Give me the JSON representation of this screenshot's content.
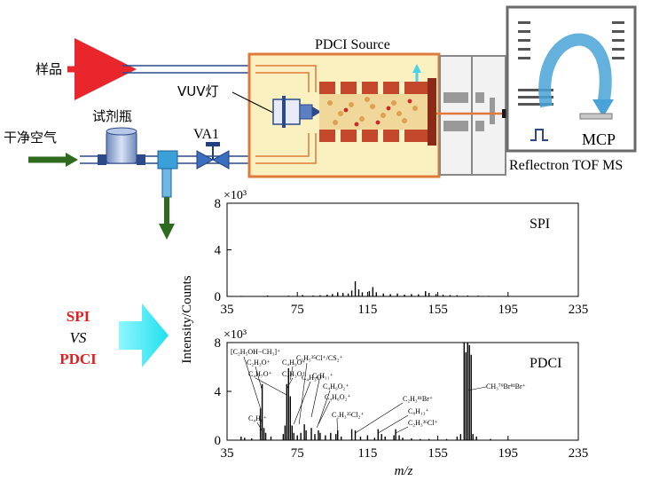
{
  "diagram": {
    "source_title": "PDCI Source",
    "labels": {
      "sample": "样品",
      "dry_air": "干净空气",
      "reagent_bottle": "试剂瓶",
      "vuv_lamp": "VUV灯",
      "valve": "VA1",
      "mcp": "MCP",
      "tof": "Reflectron TOF MS"
    },
    "comparison": {
      "line1": "SPI",
      "line2": "VS",
      "line3": "PDCI"
    },
    "colors": {
      "sample_arrow": "#e8262b",
      "air_arrow": "#2e6b1f",
      "source_fill": "#fbf0c0",
      "source_border": "#e07a3a",
      "ion_path": "#4aa3d8",
      "big_arrow": "#28e6f0",
      "comparison_red": "#e02020"
    }
  },
  "chart_data": [
    {
      "type": "bar",
      "panel_label": "SPI",
      "exponent_label": "×10³",
      "ylabel": "Intensity/Counts",
      "xlim": [
        35,
        235
      ],
      "ylim": [
        0,
        8
      ],
      "x_ticks": [
        35,
        75,
        115,
        155,
        195,
        235
      ],
      "y_ticks": [
        0,
        4,
        8
      ],
      "peaks": [
        {
          "x": 43,
          "y": 0.05
        },
        {
          "x": 58,
          "y": 0.08
        },
        {
          "x": 70,
          "y": 0.06
        },
        {
          "x": 78,
          "y": 0.12
        },
        {
          "x": 84,
          "y": 0.08
        },
        {
          "x": 88,
          "y": 0.1
        },
        {
          "x": 92,
          "y": 0.15
        },
        {
          "x": 95,
          "y": 0.2
        },
        {
          "x": 98,
          "y": 0.35
        },
        {
          "x": 101,
          "y": 0.3
        },
        {
          "x": 104,
          "y": 0.25
        },
        {
          "x": 106,
          "y": 0.5
        },
        {
          "x": 108,
          "y": 1.3
        },
        {
          "x": 110,
          "y": 0.6
        },
        {
          "x": 112,
          "y": 0.35
        },
        {
          "x": 116,
          "y": 0.45
        },
        {
          "x": 118,
          "y": 0.8
        },
        {
          "x": 120,
          "y": 0.35
        },
        {
          "x": 124,
          "y": 0.25
        },
        {
          "x": 128,
          "y": 0.2
        },
        {
          "x": 132,
          "y": 0.25
        },
        {
          "x": 136,
          "y": 0.15
        },
        {
          "x": 140,
          "y": 0.2
        },
        {
          "x": 144,
          "y": 0.18
        },
        {
          "x": 148,
          "y": 0.45
        },
        {
          "x": 150,
          "y": 0.3
        },
        {
          "x": 154,
          "y": 0.2
        },
        {
          "x": 158,
          "y": 0.15
        },
        {
          "x": 162,
          "y": 0.12
        },
        {
          "x": 166,
          "y": 0.1
        },
        {
          "x": 172,
          "y": 0.08
        },
        {
          "x": 178,
          "y": 0.06
        },
        {
          "x": 184,
          "y": 0.05
        }
      ]
    },
    {
      "type": "bar",
      "panel_label": "PDCI",
      "exponent_label": "×10³",
      "xlabel": "m/z",
      "xlim": [
        35,
        235
      ],
      "ylim": [
        0,
        8
      ],
      "x_ticks": [
        35,
        75,
        115,
        155,
        195,
        235
      ],
      "y_ticks": [
        0,
        4,
        8
      ],
      "peaks": [
        {
          "x": 43,
          "y": 0.3
        },
        {
          "x": 45,
          "y": 0.2
        },
        {
          "x": 49,
          "y": 0.15
        },
        {
          "x": 54,
          "y": 2.6
        },
        {
          "x": 55,
          "y": 4.6
        },
        {
          "x": 56,
          "y": 1.0
        },
        {
          "x": 57,
          "y": 0.6
        },
        {
          "x": 60,
          "y": 0.3
        },
        {
          "x": 67,
          "y": 0.5
        },
        {
          "x": 68,
          "y": 1.2
        },
        {
          "x": 69,
          "y": 4.6
        },
        {
          "x": 70,
          "y": 5.9
        },
        {
          "x": 71,
          "y": 3.6
        },
        {
          "x": 72,
          "y": 1.2
        },
        {
          "x": 73,
          "y": 0.6
        },
        {
          "x": 75,
          "y": 0.4
        },
        {
          "x": 77,
          "y": 0.6
        },
        {
          "x": 79,
          "y": 1.3
        },
        {
          "x": 80,
          "y": 0.8
        },
        {
          "x": 83,
          "y": 1.0
        },
        {
          "x": 85,
          "y": 0.5
        },
        {
          "x": 87,
          "y": 0.8
        },
        {
          "x": 88,
          "y": 0.6
        },
        {
          "x": 91,
          "y": 0.4
        },
        {
          "x": 94,
          "y": 0.6
        },
        {
          "x": 97,
          "y": 0.5
        },
        {
          "x": 98,
          "y": 0.8
        },
        {
          "x": 100,
          "y": 0.3
        },
        {
          "x": 106,
          "y": 0.9
        },
        {
          "x": 108,
          "y": 0.8
        },
        {
          "x": 111,
          "y": 0.3
        },
        {
          "x": 115,
          "y": 0.4
        },
        {
          "x": 119,
          "y": 0.2
        },
        {
          "x": 121,
          "y": 0.9
        },
        {
          "x": 123,
          "y": 0.5
        },
        {
          "x": 125,
          "y": 0.3
        },
        {
          "x": 130,
          "y": 0.4
        },
        {
          "x": 131,
          "y": 0.9
        },
        {
          "x": 133,
          "y": 0.4
        },
        {
          "x": 135,
          "y": 0.2
        },
        {
          "x": 140,
          "y": 0.15
        },
        {
          "x": 145,
          "y": 0.1
        },
        {
          "x": 150,
          "y": 0.1
        },
        {
          "x": 160,
          "y": 0.1
        },
        {
          "x": 166,
          "y": 0.3
        },
        {
          "x": 168,
          "y": 0.5
        },
        {
          "x": 170,
          "y": 8.0
        },
        {
          "x": 171,
          "y": 7.2
        },
        {
          "x": 172,
          "y": 8.0
        },
        {
          "x": 173,
          "y": 7.8
        },
        {
          "x": 174,
          "y": 7.0
        },
        {
          "x": 175,
          "y": 0.5
        },
        {
          "x": 177,
          "y": 0.3
        },
        {
          "x": 185,
          "y": 0.1
        }
      ],
      "annotations": [
        {
          "text": "[C₂H₅OH−CH₃]⁺",
          "x": 54
        },
        {
          "text": "C₂H₃O⁺",
          "x": 55
        },
        {
          "text": "C₄H₇O⁺",
          "x": 69
        },
        {
          "text": "C₄H₉O⁺",
          "x": 71
        },
        {
          "text": "C₄H₃O⁺",
          "x": 69
        },
        {
          "text": "C₅H₅³⁵Cl⁺/CS₂⁺",
          "x": 76
        },
        {
          "text": "C₄H₃O⁺",
          "x": 73
        },
        {
          "text": "C₆H₁₁⁺",
          "x": 83
        },
        {
          "text": "C₄H₉O₂⁺",
          "x": 87
        },
        {
          "text": "C₄H₆O₂⁺",
          "x": 86
        },
        {
          "text": "C₄H₆⁺",
          "x": 55
        },
        {
          "text": "C₂H₃³⁵Cl₂⁺",
          "x": 98
        },
        {
          "text": "C₂H₃⁸¹Br⁺",
          "x": 108
        },
        {
          "text": "C₈H₁₃⁺",
          "x": 121
        },
        {
          "text": "C₂H₃³⁶Cl⁺",
          "x": 131
        },
        {
          "text": "CH₃⁷⁹Br⁸¹Br⁺",
          "x": 172
        }
      ]
    }
  ]
}
